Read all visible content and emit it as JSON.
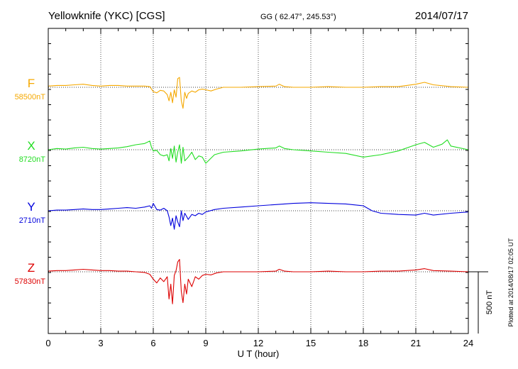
{
  "header": {
    "station": "Yellowknife (YKC)  [CGS]",
    "coords": "GG ( 62.47°, 245.53°)",
    "date": "2014/07/17"
  },
  "footer_note": "Plotted at 2014/08/17 02:05 UT",
  "scale_label": "500 nT",
  "chart_data": {
    "type": "line",
    "xlabel": "U T (hour)",
    "xlim": [
      0,
      24
    ],
    "xticks": [
      0,
      3,
      6,
      9,
      12,
      15,
      18,
      21,
      24
    ],
    "grid": true,
    "scale_bar_nT": 500,
    "series": [
      {
        "name": "F",
        "baseline_label": "58500nT",
        "color": "#f5a800",
        "baseline_nT": 58500,
        "x": [
          0,
          0.5,
          1,
          1.5,
          2,
          2.5,
          3,
          3.5,
          4,
          4.5,
          5,
          5.5,
          5.8,
          6.0,
          6.2,
          6.4,
          6.6,
          6.8,
          6.9,
          7.0,
          7.1,
          7.2,
          7.3,
          7.4,
          7.5,
          7.6,
          7.7,
          7.8,
          7.9,
          8.0,
          8.2,
          8.4,
          8.6,
          8.8,
          9.0,
          9.3,
          9.6,
          10,
          11,
          12,
          13,
          13.2,
          13.5,
          14,
          15,
          16,
          17,
          18,
          19,
          20,
          21,
          21.5,
          22,
          23,
          24
        ],
        "y": [
          10,
          15,
          15,
          20,
          25,
          15,
          10,
          15,
          15,
          10,
          10,
          10,
          5,
          -35,
          -45,
          -25,
          -30,
          -60,
          -110,
          -40,
          -125,
          -20,
          -80,
          70,
          80,
          -110,
          -170,
          -40,
          -90,
          -50,
          -30,
          -40,
          -20,
          -15,
          -20,
          -30,
          -15,
          0,
          0,
          5,
          10,
          25,
          5,
          0,
          0,
          5,
          0,
          0,
          5,
          5,
          25,
          40,
          20,
          5,
          0
        ]
      },
      {
        "name": "X",
        "baseline_label": "8720nT",
        "color": "#22dd22",
        "baseline_nT": 8720,
        "x": [
          0,
          0.5,
          1,
          1.5,
          2,
          2.5,
          3,
          3.5,
          4,
          4.5,
          5,
          5.5,
          5.8,
          5.9,
          6.0,
          6.2,
          6.4,
          6.6,
          6.8,
          6.9,
          7.0,
          7.1,
          7.2,
          7.3,
          7.4,
          7.5,
          7.6,
          7.7,
          7.8,
          8.0,
          8.2,
          8.4,
          8.6,
          8.8,
          9.0,
          9.5,
          10,
          11,
          12,
          13,
          13.2,
          13.5,
          14,
          15,
          16,
          17,
          18,
          19,
          20,
          21,
          21.5,
          22,
          22.5,
          22.8,
          23,
          24
        ],
        "y": [
          0,
          10,
          5,
          15,
          20,
          10,
          5,
          10,
          15,
          25,
          40,
          50,
          70,
          20,
          -10,
          -5,
          -40,
          -50,
          -40,
          -90,
          10,
          -70,
          30,
          -100,
          -20,
          40,
          -110,
          20,
          -90,
          -60,
          -20,
          -80,
          -50,
          -60,
          -110,
          -40,
          -20,
          -10,
          5,
          15,
          30,
          10,
          0,
          -10,
          -20,
          -30,
          -60,
          -40,
          -10,
          40,
          60,
          20,
          45,
          80,
          30,
          0
        ]
      },
      {
        "name": "Y",
        "baseline_label": "2710nT",
        "color": "#0000dd",
        "baseline_nT": 2710,
        "x": [
          0,
          0.5,
          1,
          1.5,
          2,
          2.5,
          3,
          3.5,
          4,
          4.5,
          5,
          5.5,
          5.8,
          5.9,
          6.0,
          6.2,
          6.4,
          6.6,
          6.8,
          6.9,
          7.0,
          7.1,
          7.2,
          7.3,
          7.4,
          7.5,
          7.6,
          7.7,
          7.8,
          8.0,
          8.2,
          8.4,
          8.6,
          8.8,
          9.0,
          9.5,
          10,
          11,
          12,
          13,
          14,
          15,
          16,
          17,
          18,
          18.5,
          19,
          20,
          21,
          21.5,
          22,
          23,
          24
        ],
        "y": [
          0,
          5,
          5,
          10,
          15,
          10,
          10,
          15,
          20,
          25,
          20,
          30,
          40,
          20,
          60,
          10,
          5,
          20,
          0,
          -50,
          -120,
          -60,
          -150,
          -40,
          -90,
          -130,
          0,
          -80,
          -20,
          -70,
          -30,
          -40,
          -20,
          -30,
          -10,
          10,
          20,
          30,
          40,
          50,
          60,
          65,
          60,
          55,
          40,
          0,
          -20,
          -30,
          -35,
          -20,
          -35,
          -20,
          -10
        ]
      },
      {
        "name": "Z",
        "baseline_label": "57830nT",
        "color": "#dd0000",
        "baseline_nT": 57830,
        "x": [
          0,
          0.5,
          1,
          1.5,
          2,
          2.5,
          3,
          3.5,
          4,
          4.5,
          5,
          5.5,
          5.8,
          6.0,
          6.2,
          6.4,
          6.6,
          6.8,
          6.9,
          7.0,
          7.1,
          7.2,
          7.3,
          7.4,
          7.5,
          7.6,
          7.7,
          7.8,
          7.9,
          8.0,
          8.2,
          8.4,
          8.6,
          8.8,
          9.0,
          9.3,
          9.6,
          10,
          11,
          12,
          13,
          13.2,
          13.5,
          14,
          15,
          16,
          17,
          18,
          19,
          20,
          21,
          21.5,
          22,
          23,
          24
        ],
        "y": [
          5,
          10,
          10,
          15,
          20,
          15,
          10,
          10,
          5,
          5,
          0,
          -5,
          -20,
          -60,
          -90,
          -50,
          -80,
          -40,
          -220,
          -100,
          -260,
          -30,
          10,
          80,
          100,
          -160,
          -250,
          -100,
          -180,
          -60,
          -120,
          -40,
          -60,
          -30,
          -20,
          -25,
          -10,
          0,
          0,
          0,
          5,
          20,
          5,
          0,
          0,
          5,
          0,
          0,
          5,
          5,
          15,
          25,
          10,
          5,
          0
        ]
      }
    ]
  }
}
